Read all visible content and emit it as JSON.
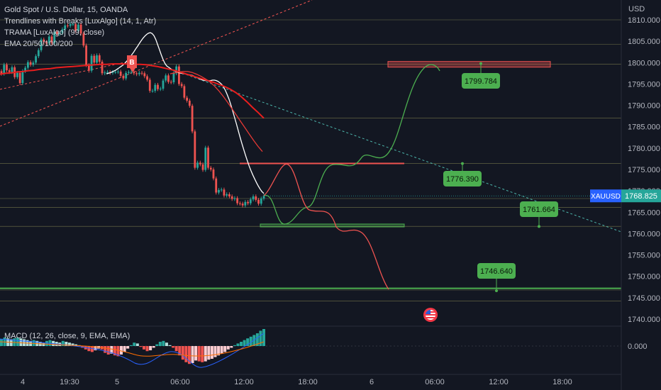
{
  "header": {
    "symbol_line": "Gold Spot / U.S. Dollar, 15, OANDA",
    "indicators": [
      "Trendlines with Breaks [LuxAlgo] (14, 1, Atr)",
      "TRAMA [LuxAlgo] (99, close)",
      "EMA 20/50/100/200"
    ],
    "macd_label": "MACD (12, 26, close, 9, EMA, EMA)"
  },
  "colors": {
    "background": "#131722",
    "up": "#26a69a",
    "down": "#ef5350",
    "ema_fast": "#ffffff",
    "ema_slow": "#e91e1e",
    "projection": "#4caf50",
    "green_label": "#4caf50",
    "ticker_badge": "#26a69a"
  },
  "chart_data": {
    "type": "candlestick",
    "symbol": "XAUUSD",
    "price_axis": {
      "unit": "USD",
      "ticks": [
        "1810.000",
        "1805.000",
        "1800.000",
        "1795.000",
        "1790.000",
        "1785.000",
        "1780.000",
        "1775.000",
        "1770.000",
        "1765.000",
        "1760.000",
        "1755.000",
        "1750.000",
        "1745.000",
        "1740.000"
      ],
      "range": [
        1738.5,
        1811
      ]
    },
    "time_axis": {
      "labels": [
        "4",
        "19:30",
        "5",
        "06:00",
        "12:00",
        "18:00",
        "6",
        "06:00",
        "12:00",
        "18:00"
      ]
    },
    "current_price": {
      "ticker": "XAUUSD",
      "value": "1768.825",
      "price": 1768.825
    },
    "horizontal_levels": [
      1810.0,
      1804.3,
      1799.6,
      1787.0,
      1776.4,
      1768.2,
      1766.1,
      1761.7,
      1747.2,
      1746.8,
      1744.2
    ],
    "candles_close": [
      1797.4,
      1799.5,
      1798.2,
      1797.8,
      1798.9,
      1796.6,
      1797.6,
      1795.2,
      1798.0,
      1798.8,
      1800.1,
      1799.5,
      1800.0,
      1801.5,
      1802.9,
      1805.4,
      1804.8,
      1804.5,
      1806.1,
      1804.6,
      1807.2,
      1806.7,
      1806.9,
      1807.8,
      1808.7,
      1808.6,
      1809.0,
      1809.0,
      1807.4,
      1808.9,
      1806.8,
      1804.0,
      1799.4,
      1798.1,
      1801.6,
      1800.0,
      1801.7,
      1800.2,
      1797.5,
      1797.7,
      1797.8,
      1797.6,
      1797.8,
      1797.8,
      1797.9,
      1796.9,
      1796.3,
      1797.6,
      1797.8,
      1797.8,
      1797.5,
      1797.3,
      1797.6,
      1797.5,
      1796.8,
      1796.0,
      1793.4,
      1793.4,
      1794.8,
      1793.8,
      1793.9,
      1795.8,
      1797.0,
      1795.5,
      1795.4,
      1797.5,
      1799.1,
      1795.0,
      1794.5,
      1791.8,
      1791.1,
      1789.9,
      1783.9,
      1775.4,
      1776.6,
      1776.2,
      1774.9,
      1780.1,
      1775.4,
      1775.0,
      1772.9,
      1769.6,
      1770.2,
      1770.3,
      1768.9,
      1769.2,
      1768.7,
      1768.1,
      1768.3,
      1767.1,
      1767.0,
      1766.6,
      1767.4,
      1767.1,
      1768.0,
      1768.7,
      1767.9,
      1767.0,
      1768.2,
      1768.8
    ],
    "ema_fast": [
      1797.4,
      1797.5,
      1797.6,
      1797.8,
      1798.0,
      1798.2,
      1798.5,
      1798.8,
      1799.1,
      1799.4,
      1799.8,
      1800.3,
      1800.8,
      1801.3,
      1801.9,
      1802.5,
      1803.2,
      1803.8,
      1804.5,
      1805.1,
      1805.7,
      1806.2,
      1806.6,
      1806.9,
      1807.0,
      1806.8,
      1806.3,
      1805.4,
      1804.2,
      1803.0,
      1801.8,
      1800.7,
      1799.8,
      1799.2,
      1798.9,
      1798.6,
      1798.3,
      1798.1,
      1797.9,
      1797.7,
      1797.6,
      1797.5,
      1797.4,
      1797.4,
      1797.3,
      1797.2,
      1797.1,
      1797.0,
      1796.8,
      1796.6,
      1796.4,
      1796.2,
      1796.0,
      1795.9,
      1795.8,
      1795.8,
      1795.8,
      1795.8,
      1795.9,
      1795.9,
      1795.8,
      1795.6,
      1795.3,
      1794.9,
      1794.3,
      1793.5,
      1792.5,
      1791.4,
      1790.1,
      1788.7,
      1787.2,
      1785.7,
      1784.1,
      1782.6,
      1781.1,
      1779.7,
      1778.3,
      1777.0,
      1775.8,
      1774.7,
      1773.7,
      1772.8,
      1771.9,
      1771.1,
      1770.4,
      1769.8,
      1769.4
    ],
    "ema_slow": [
      1797.3,
      1797.5,
      1797.6,
      1797.8,
      1797.9,
      1798.1,
      1798.2,
      1798.4,
      1798.5,
      1798.6,
      1798.8,
      1798.9,
      1799.0,
      1799.1,
      1799.2,
      1799.3,
      1799.4,
      1799.5,
      1799.6,
      1799.6,
      1799.7,
      1799.7,
      1799.7,
      1799.7,
      1799.6,
      1799.6,
      1799.5,
      1799.3,
      1799.1,
      1798.8,
      1798.5,
      1798.2,
      1797.8,
      1797.4,
      1797.0,
      1796.6,
      1796.2,
      1795.8,
      1795.4,
      1794.9,
      1794.4,
      1793.8,
      1793.0,
      1792.0,
      1790.8,
      1789.5,
      1788.3,
      1787.0
    ],
    "ema_mid": [
      1797.4,
      1797.6,
      1797.8,
      1797.9,
      1797.9,
      1797.7,
      1797.3,
      1796.8,
      1796.2,
      1795.5,
      1794.6,
      1793.5,
      1792.2,
      1790.8,
      1789.3,
      1787.8,
      1786.3,
      1784.8,
      1783.3,
      1781.8,
      1780.4,
      1779.2
    ],
    "macd_histogram": [
      0.8,
      1.0,
      0.9,
      0.8,
      0.9,
      1.0,
      0.9,
      0.8,
      0.7,
      0.6,
      0.7,
      0.6,
      0.5,
      0.4,
      0.6,
      0.7,
      0.6,
      0.5,
      0.4,
      0.6,
      0.5,
      0.4,
      0.3,
      0.2,
      0.1,
      -0.2,
      -0.4,
      -0.6,
      -0.7,
      -0.5,
      -0.3,
      -0.4,
      -0.8,
      -1.0,
      -0.9,
      -1.1,
      -1.2,
      -1.0,
      -0.7,
      -0.3,
      0.1,
      0.4,
      0.3,
      -0.1,
      -0.4,
      -0.6,
      -0.5,
      -0.2,
      0.2,
      0.5,
      0.6,
      0.4,
      0.1,
      -0.2,
      -0.6,
      -1.1,
      -1.6,
      -1.9,
      -2.1,
      -2.0,
      -1.7,
      -1.8,
      -1.9,
      -1.8,
      -1.6,
      -1.5,
      -1.3,
      -1.1,
      -0.9,
      -0.7,
      -0.4,
      -0.2,
      0.1,
      0.3,
      0.5,
      0.7,
      0.9,
      1.1,
      1.3,
      1.5,
      1.8,
      2.0
    ],
    "projections": [
      {
        "color": "#4caf50",
        "points": [
          [
            1768.8,
            0
          ],
          [
            1799.8,
            1
          ]
        ]
      },
      {
        "color": "#ef5350",
        "points": [
          [
            1768.8,
            0
          ],
          [
            1747.0,
            1
          ]
        ]
      }
    ],
    "price_labels": [
      {
        "value": "1799.784",
        "price": 1799.784
      },
      {
        "value": "1776.390",
        "price": 1776.39
      },
      {
        "value": "1761.664",
        "price": 1761.664
      },
      {
        "value": "1746.640",
        "price": 1746.64
      }
    ],
    "zones": [
      {
        "type": "resistance",
        "price": 1799.6
      },
      {
        "type": "resistance",
        "price": 1776.4
      },
      {
        "type": "support",
        "price": 1761.9
      }
    ],
    "break_marker": "B",
    "macd_axis_label": "0.000"
  }
}
